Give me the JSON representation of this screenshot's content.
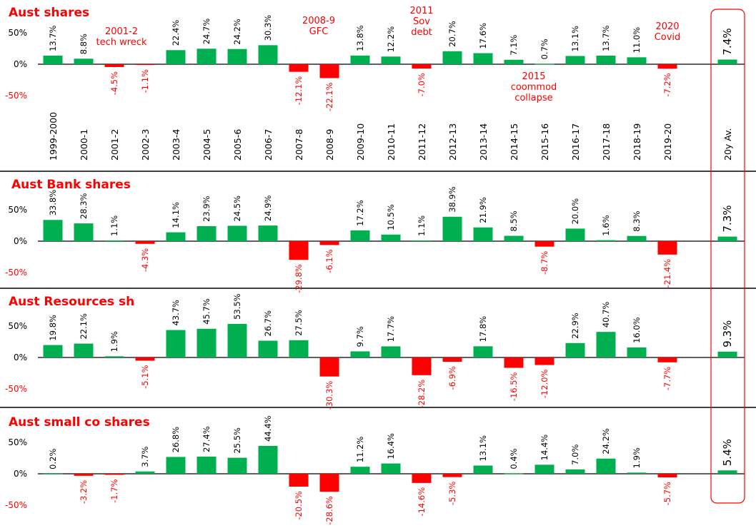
{
  "chart_data": {
    "type": "bar",
    "title": "",
    "xlabel": "",
    "ylabel": "",
    "ylim": [
      -50,
      50
    ],
    "yticks": [
      "50%",
      "0%",
      "-50%"
    ],
    "grid": false,
    "legend": "none",
    "categories": [
      "1999-2000",
      "2000-1",
      "2001-2",
      "2002-3",
      "2003-4",
      "2004-5",
      "2005-6",
      "2006-7",
      "2007-8",
      "2008-9",
      "2009-10",
      "2010-11",
      "2011-12",
      "2012-13",
      "2013-14",
      "2014-15",
      "2015-16",
      "2016-17",
      "2017-18",
      "2018-19",
      "2019-20"
    ],
    "average_category": "20y Av.",
    "colors": {
      "positive": "#00b050",
      "negative": "#ff0000",
      "highlight_box": "#ff0000"
    },
    "series": [
      {
        "name": "Aust shares",
        "values": [
          13.7,
          8.8,
          -4.5,
          -1.1,
          22.4,
          24.7,
          24.2,
          30.3,
          -12.1,
          -22.1,
          13.8,
          12.2,
          -7.0,
          20.7,
          17.6,
          7.1,
          0.7,
          13.1,
          13.7,
          11.0,
          -7.2
        ],
        "average": 7.4
      },
      {
        "name": "Aust Bank shares",
        "values": [
          33.8,
          28.3,
          1.1,
          -4.3,
          14.1,
          23.9,
          24.5,
          24.9,
          -29.8,
          -6.1,
          17.2,
          10.5,
          1.1,
          38.9,
          21.9,
          8.5,
          -8.7,
          20.0,
          1.6,
          8.3,
          -21.4
        ],
        "average": 7.3
      },
      {
        "name": "Aust Resources sh",
        "values": [
          19.8,
          22.1,
          1.9,
          -5.1,
          43.7,
          45.7,
          53.5,
          26.7,
          27.5,
          -30.3,
          9.7,
          17.7,
          -28.2,
          -6.9,
          17.8,
          -16.5,
          -12.0,
          22.9,
          40.7,
          16.0,
          -7.7
        ],
        "average": 9.3
      },
      {
        "name": "Aust small co shares",
        "values": [
          0.2,
          -3.2,
          -1.7,
          3.7,
          26.8,
          27.4,
          25.5,
          44.4,
          -20.5,
          -28.6,
          11.2,
          16.4,
          -14.6,
          -5.3,
          13.1,
          0.4,
          14.4,
          7.0,
          24.2,
          1.9,
          -5.7
        ],
        "average": 5.4
      }
    ],
    "annotations": [
      {
        "lines": [
          "2001-2",
          "tech wreck"
        ],
        "category": "2001-2"
      },
      {
        "lines": [
          "2008-9",
          "GFC"
        ],
        "category": "2008-9"
      },
      {
        "lines": [
          "2011",
          "Sov",
          "debt"
        ],
        "category": "2011-12"
      },
      {
        "lines": [
          "2015",
          "coommod",
          "collapse"
        ],
        "category": "2015-16"
      },
      {
        "lines": [
          "2020",
          "Covid"
        ],
        "category": "2019-20"
      }
    ]
  }
}
